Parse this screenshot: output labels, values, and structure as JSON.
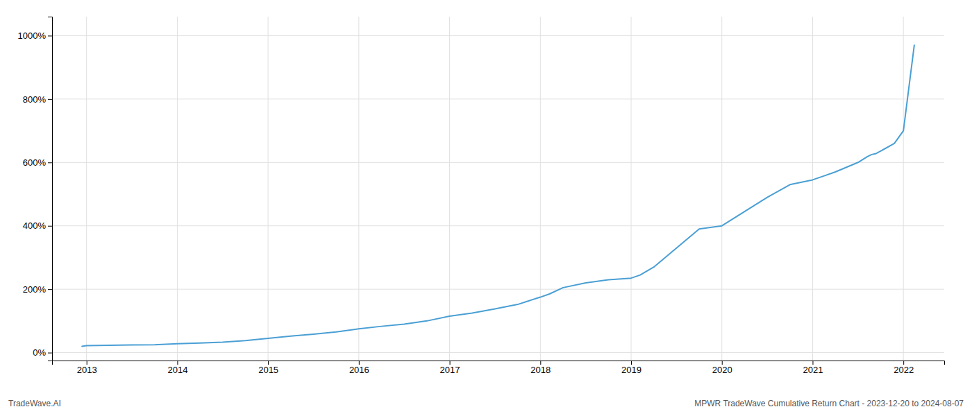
{
  "chart_data": {
    "type": "line",
    "title": "MPWR TradeWave Cumulative Return Chart - 2023-12-20 to 2024-08-07",
    "annotations": [
      "TradeWave.AI"
    ],
    "x": [
      2012.95,
      2013.0,
      2013.25,
      2013.5,
      2013.75,
      2014.0,
      2014.25,
      2014.5,
      2014.75,
      2015.0,
      2015.25,
      2015.5,
      2015.75,
      2016.0,
      2016.25,
      2016.5,
      2016.75,
      2017.0,
      2017.25,
      2017.5,
      2017.75,
      2018.0,
      2018.1,
      2018.25,
      2018.5,
      2018.75,
      2019.0,
      2019.1,
      2019.25,
      2019.5,
      2019.75,
      2020.0,
      2020.25,
      2020.5,
      2020.75,
      2021.0,
      2021.1,
      2021.25,
      2021.5,
      2021.6,
      2021.65,
      2021.7,
      2021.9,
      2022.0,
      2022.12
    ],
    "values": [
      20,
      22,
      23,
      24,
      25,
      28,
      30,
      33,
      38,
      45,
      52,
      58,
      65,
      75,
      83,
      90,
      100,
      115,
      125,
      138,
      152,
      175,
      185,
      205,
      220,
      230,
      235,
      245,
      270,
      330,
      390,
      400,
      445,
      490,
      530,
      545,
      555,
      570,
      600,
      618,
      625,
      628,
      660,
      700,
      970
    ],
    "color": "#4a9fd4",
    "xlim": [
      2012.62,
      2022.45
    ],
    "xticks": [
      2013,
      2014,
      2015,
      2016,
      2017,
      2018,
      2019,
      2020,
      2021,
      2022
    ],
    "ylim": [
      -25,
      1060
    ],
    "yticks": [
      {
        "value": 0,
        "label": "0%"
      },
      {
        "value": 200,
        "label": "200%"
      },
      {
        "value": 400,
        "label": "400%"
      },
      {
        "value": 600,
        "label": "600%"
      },
      {
        "value": 800,
        "label": "800%"
      },
      {
        "value": 1000,
        "label": "1000%"
      }
    ],
    "grid": true
  }
}
